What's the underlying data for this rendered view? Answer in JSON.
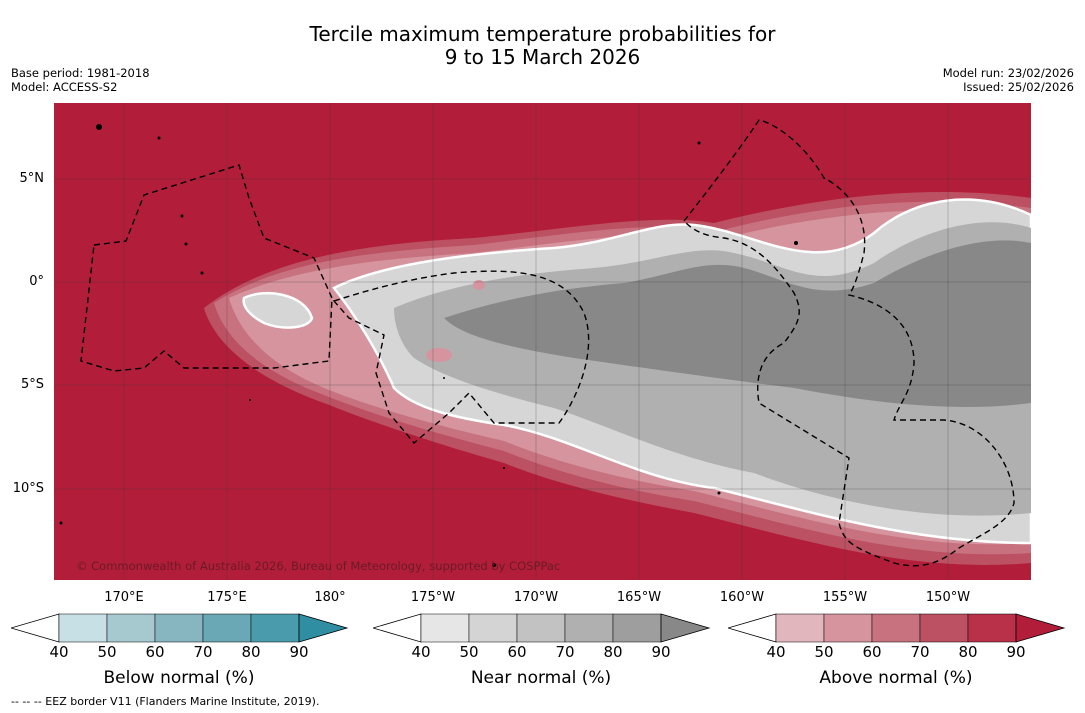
{
  "title": {
    "line1": "Tercile maximum temperature probabilities for",
    "line2": "9 to 15 March 2026"
  },
  "meta_left": {
    "base_period": "Base period: 1981-2018",
    "model": "Model: ACCESS-S2"
  },
  "meta_right": {
    "model_run": "Model run: 23/02/2026",
    "issued": "Issued: 25/02/2026"
  },
  "map": {
    "copyright": "© Commonwealth of Australia 2026, Bureau of Meteorology, supported by COSPPac",
    "lat_labels": [
      "5°N",
      "0°",
      "5°S",
      "10°S"
    ],
    "lon_labels_top_row": [
      "170°E",
      "175°E",
      "180°"
    ],
    "lon_labels_bottom_row": [
      "175°W",
      "170°W",
      "165°W",
      "160°W",
      "155°W",
      "150°W"
    ],
    "colors": {
      "above": "#b21e3a",
      "near_dark": "#888888",
      "near_light": "#d6d6d6",
      "below": "#2f8ea1"
    }
  },
  "colorbars": [
    {
      "title": "Below normal (%)",
      "ticks": [
        "40",
        "50",
        "60",
        "70",
        "80",
        "90"
      ],
      "colors": [
        "#ffffff",
        "#c7e0e6",
        "#a6c9d0",
        "#87b6c0",
        "#6aa8b5",
        "#4a9bac",
        "#2f8ea1"
      ]
    },
    {
      "title": "Near normal (%)",
      "ticks": [
        "40",
        "50",
        "60",
        "70",
        "80",
        "90"
      ],
      "colors": [
        "#ffffff",
        "#e6e6e6",
        "#d4d4d4",
        "#c2c2c2",
        "#b0b0b0",
        "#9e9e9e",
        "#888888"
      ]
    },
    {
      "title": "Above normal (%)",
      "ticks": [
        "40",
        "50",
        "60",
        "70",
        "80",
        "90"
      ],
      "colors": [
        "#ffffff",
        "#e2b6bd",
        "#d5949e",
        "#c8727f",
        "#bb5163",
        "#b83148",
        "#b21e3a"
      ]
    }
  ],
  "footer": "-- --  -- EEZ border V11 (Flanders Marine Institute, 2019)."
}
